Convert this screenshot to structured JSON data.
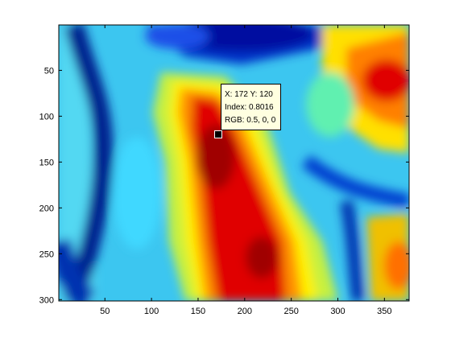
{
  "chart_data": {
    "type": "heatmap",
    "title": "",
    "xlabel": "",
    "ylabel": "",
    "xlim": [
      1,
      376
    ],
    "ylim": [
      1,
      301
    ],
    "y_reversed": true,
    "colormap": "jet",
    "grid": false,
    "xticks": [
      50,
      100,
      150,
      200,
      250,
      300,
      350
    ],
    "yticks": [
      50,
      100,
      150,
      200,
      250,
      300
    ],
    "xtick_labels": [
      "50",
      "100",
      "150",
      "200",
      "250",
      "300",
      "350"
    ],
    "ytick_labels": [
      "50",
      "100",
      "150",
      "200",
      "250",
      "300"
    ],
    "datatip": {
      "x": 172,
      "y": 120,
      "position_label": "X: 172 Y: 120",
      "index_label": "Index: 0.8016",
      "rgb_label": "RGB: 0.5, 0, 0"
    }
  }
}
